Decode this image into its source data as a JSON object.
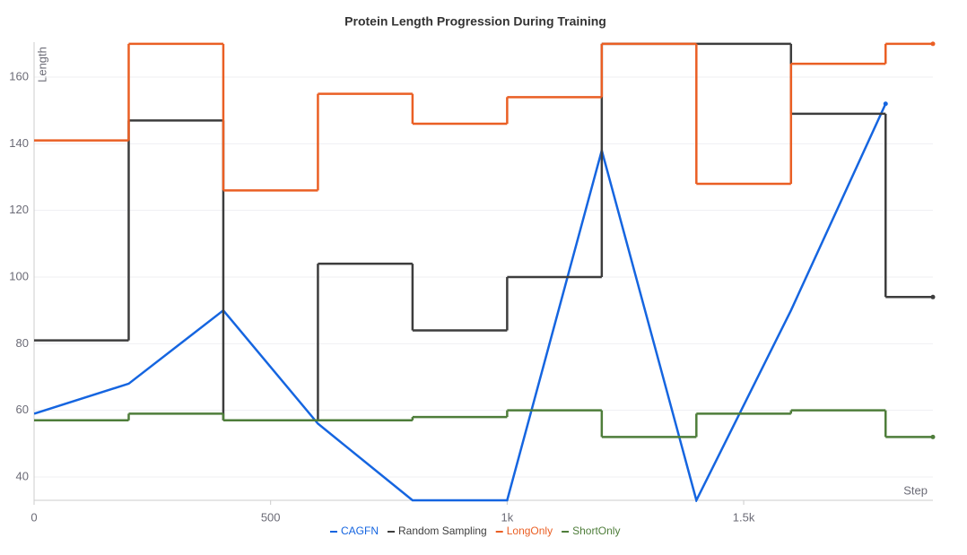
{
  "chart_data": {
    "type": "line",
    "title": "Protein Length Progression During Training",
    "xlabel": "Step",
    "ylabel": "Length",
    "x": [
      0,
      200,
      400,
      600,
      800,
      1000,
      1200,
      1400,
      1600,
      1800,
      1900
    ],
    "series": [
      {
        "name": "CAGFN",
        "color": "#1565e0",
        "interpolation": "linear",
        "values": [
          59,
          68,
          90,
          56,
          33,
          33,
          138,
          33,
          90,
          152,
          null
        ]
      },
      {
        "name": "Random Sampling",
        "color": "#3d3d3d",
        "interpolation": "step",
        "values": [
          81,
          147,
          57,
          104,
          84,
          100,
          170,
          170,
          149,
          94,
          94
        ]
      },
      {
        "name": "LongOnly",
        "color": "#ea5f24",
        "interpolation": "step",
        "values": [
          141,
          170,
          126,
          155,
          146,
          154,
          170,
          128,
          164,
          170,
          170
        ]
      },
      {
        "name": "ShortOnly",
        "color": "#4e7d3a",
        "interpolation": "step",
        "values": [
          57,
          59,
          57,
          57,
          58,
          60,
          52,
          59,
          60,
          52,
          52
        ]
      }
    ],
    "xlim": [
      0,
      1900
    ],
    "ylim": [
      33,
      170.5
    ],
    "xticks": [
      0,
      500,
      {
        "value": 1000,
        "label": "1k"
      },
      {
        "value": 1500,
        "label": "1.5k"
      }
    ],
    "yticks": [
      40,
      60,
      80,
      100,
      120,
      140,
      160
    ],
    "grid": true,
    "legend": "bottom"
  }
}
